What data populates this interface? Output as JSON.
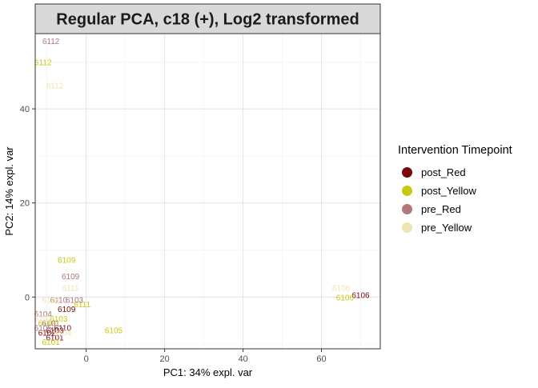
{
  "chart_data": {
    "type": "scatter",
    "title": "Regular PCA, c18 (+), Log2 transformed",
    "xlabel": "PC1: 34% expl. var",
    "ylabel": "PC2: 14% expl. var",
    "xlim": [
      -13,
      75
    ],
    "ylim": [
      -11,
      56
    ],
    "x_ticks": [
      0,
      20,
      40,
      60
    ],
    "y_ticks": [
      0,
      20,
      40
    ],
    "grid": true,
    "legend": {
      "title": "Intervention Timepoint",
      "placement": "right"
    },
    "series": [
      {
        "name": "post_Red",
        "color": "#7a0a0a",
        "points": [
          {
            "x": 70,
            "y": 0.5,
            "label": "6106"
          },
          {
            "x": -5,
            "y": -2.5,
            "label": "6109"
          },
          {
            "x": -8,
            "y": -7,
            "label": "6103"
          },
          {
            "x": -6,
            "y": -6.5,
            "label": "6110"
          },
          {
            "x": -8,
            "y": -8.5,
            "label": "6101"
          },
          {
            "x": -10,
            "y": -7.5,
            "label": "6102"
          }
        ]
      },
      {
        "name": "post_Yellow",
        "color": "#c8c810",
        "points": [
          {
            "x": -11,
            "y": 50,
            "label": "6112"
          },
          {
            "x": -5,
            "y": 8,
            "label": "6109"
          },
          {
            "x": 66,
            "y": 0,
            "label": "6106"
          },
          {
            "x": -1,
            "y": -1.5,
            "label": "6111"
          },
          {
            "x": 7,
            "y": -7,
            "label": "6105"
          },
          {
            "x": -7,
            "y": -4.5,
            "label": "6103"
          },
          {
            "x": -10,
            "y": -5.5,
            "label": "6108"
          },
          {
            "x": -9,
            "y": -9.5,
            "label": "6101"
          }
        ]
      },
      {
        "name": "pre_Red",
        "color": "#b07878",
        "points": [
          {
            "x": -9,
            "y": 54.5,
            "label": "6112"
          },
          {
            "x": -4,
            "y": 4.5,
            "label": "6109"
          },
          {
            "x": -3,
            "y": -0.5,
            "label": "6103"
          },
          {
            "x": -7,
            "y": -0.5,
            "label": "6110"
          },
          {
            "x": -11,
            "y": -3.5,
            "label": "6104"
          },
          {
            "x": -9,
            "y": -5.5,
            "label": "6101"
          },
          {
            "x": -11,
            "y": -6.5,
            "label": "6105"
          }
        ]
      },
      {
        "name": "pre_Yellow",
        "color": "#ede4b0",
        "points": [
          {
            "x": -8,
            "y": 45,
            "label": "6112"
          },
          {
            "x": -4,
            "y": 2,
            "label": "6111"
          },
          {
            "x": 65,
            "y": 2,
            "label": "6106"
          },
          {
            "x": -9,
            "y": -0.5,
            "label": "6108"
          },
          {
            "x": -11,
            "y": -4.5,
            "label": "6102"
          },
          {
            "x": -6,
            "y": -7.5,
            "label": "6104"
          }
        ]
      }
    ]
  }
}
